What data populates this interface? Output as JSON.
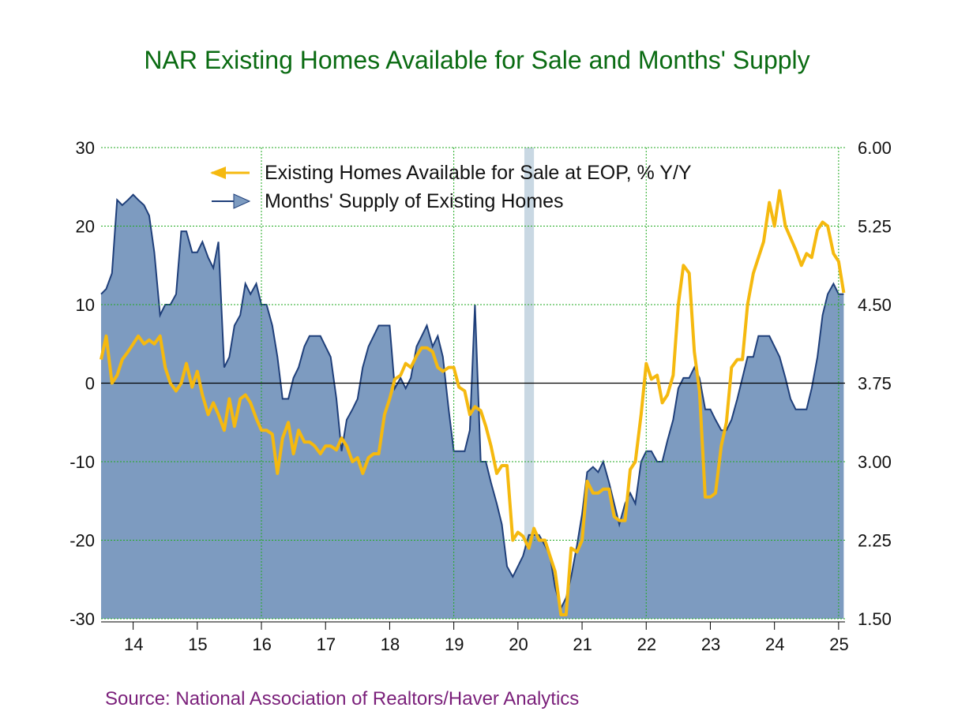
{
  "chart_data": {
    "type": "area",
    "title": "NAR Existing Homes Available for Sale and Months' Supply",
    "source": "Source:  National Association of Realtors/Haver Analytics",
    "colors": {
      "title": "#0a6b12",
      "source": "#7a1f7a",
      "area_fill": "#7d9bc0",
      "area_line": "#1f3f7a",
      "line": "#f5b90f",
      "recession": "#c9d8e3",
      "grid": "#22aa22"
    },
    "grid": true,
    "legend_position": "top-center",
    "x_axis": {
      "start": 2013.5,
      "end": 2025.1,
      "ticks": [
        "14",
        "15",
        "16",
        "17",
        "18",
        "19",
        "20",
        "21",
        "22",
        "23",
        "24",
        "25"
      ]
    },
    "y_left": {
      "range": [
        -30,
        30
      ],
      "ticks": [
        "30",
        "20",
        "10",
        "0",
        "-10",
        "-20",
        "-30"
      ]
    },
    "y_right": {
      "range": [
        1.5,
        6.0
      ],
      "ticks": [
        "6.00",
        "5.25",
        "4.50",
        "3.75",
        "3.00",
        "2.25",
        "1.50"
      ]
    },
    "recession": {
      "start": 2020.1,
      "end": 2020.25
    },
    "series": [
      {
        "name": "Existing Homes Available for Sale at EOP, % Y/Y",
        "axis": "left",
        "style": "line",
        "points": [
          [
            2013.5,
            3
          ],
          [
            2013.58,
            6
          ],
          [
            2013.67,
            0
          ],
          [
            2013.75,
            1
          ],
          [
            2013.83,
            3
          ],
          [
            2013.92,
            4
          ],
          [
            2014.0,
            5
          ],
          [
            2014.08,
            6
          ],
          [
            2014.17,
            5
          ],
          [
            2014.25,
            5.5
          ],
          [
            2014.33,
            5
          ],
          [
            2014.42,
            6
          ],
          [
            2014.5,
            2
          ],
          [
            2014.58,
            0
          ],
          [
            2014.67,
            -1
          ],
          [
            2014.75,
            0
          ],
          [
            2014.83,
            2.5
          ],
          [
            2014.92,
            -0.5
          ],
          [
            2015.0,
            1.5
          ],
          [
            2015.08,
            -1.5
          ],
          [
            2015.17,
            -4
          ],
          [
            2015.25,
            -2.5
          ],
          [
            2015.33,
            -4
          ],
          [
            2015.42,
            -6
          ],
          [
            2015.5,
            -2
          ],
          [
            2015.58,
            -5.5
          ],
          [
            2015.67,
            -2
          ],
          [
            2015.75,
            -1.5
          ],
          [
            2015.83,
            -2.5
          ],
          [
            2015.92,
            -4.5
          ],
          [
            2016.0,
            -6
          ],
          [
            2016.08,
            -6
          ],
          [
            2016.17,
            -6.5
          ],
          [
            2016.25,
            -11.5
          ],
          [
            2016.33,
            -7
          ],
          [
            2016.42,
            -5
          ],
          [
            2016.5,
            -9
          ],
          [
            2016.58,
            -6
          ],
          [
            2016.67,
            -7.5
          ],
          [
            2016.75,
            -7.5
          ],
          [
            2016.83,
            -8
          ],
          [
            2016.92,
            -9
          ],
          [
            2017.0,
            -8
          ],
          [
            2017.08,
            -8
          ],
          [
            2017.17,
            -8.5
          ],
          [
            2017.25,
            -7
          ],
          [
            2017.33,
            -8
          ],
          [
            2017.42,
            -10
          ],
          [
            2017.5,
            -9.5
          ],
          [
            2017.58,
            -11.5
          ],
          [
            2017.67,
            -9.5
          ],
          [
            2017.75,
            -9
          ],
          [
            2017.83,
            -9
          ],
          [
            2017.92,
            -4
          ],
          [
            2018.0,
            -2
          ],
          [
            2018.08,
            0.5
          ],
          [
            2018.17,
            1
          ],
          [
            2018.25,
            2.5
          ],
          [
            2018.33,
            2
          ],
          [
            2018.42,
            3.5
          ],
          [
            2018.5,
            4.5
          ],
          [
            2018.58,
            4.5
          ],
          [
            2018.67,
            4
          ],
          [
            2018.75,
            2
          ],
          [
            2018.83,
            1.5
          ],
          [
            2018.92,
            2
          ],
          [
            2019.0,
            2
          ],
          [
            2019.08,
            -0.5
          ],
          [
            2019.17,
            -1
          ],
          [
            2019.25,
            -4
          ],
          [
            2019.33,
            -3
          ],
          [
            2019.42,
            -3.5
          ],
          [
            2019.5,
            -5.5
          ],
          [
            2019.58,
            -8
          ],
          [
            2019.67,
            -11.5
          ],
          [
            2019.75,
            -10.5
          ],
          [
            2019.83,
            -10.5
          ],
          [
            2019.92,
            -20
          ],
          [
            2020.0,
            -19
          ],
          [
            2020.08,
            -19.5
          ],
          [
            2020.17,
            -21
          ],
          [
            2020.25,
            -18.5
          ],
          [
            2020.33,
            -20
          ],
          [
            2020.42,
            -20
          ],
          [
            2020.5,
            -22
          ],
          [
            2020.58,
            -24
          ],
          [
            2020.67,
            -29.5
          ],
          [
            2020.75,
            -29.5
          ],
          [
            2020.83,
            -21
          ],
          [
            2020.92,
            -21.5
          ],
          [
            2021.0,
            -20
          ],
          [
            2021.08,
            -12.5
          ],
          [
            2021.17,
            -14
          ],
          [
            2021.25,
            -14
          ],
          [
            2021.33,
            -13.5
          ],
          [
            2021.42,
            -13.5
          ],
          [
            2021.5,
            -17
          ],
          [
            2021.58,
            -17.5
          ],
          [
            2021.67,
            -17.5
          ],
          [
            2021.75,
            -11
          ],
          [
            2021.83,
            -10
          ],
          [
            2021.92,
            -4
          ],
          [
            2022.0,
            2.5
          ],
          [
            2022.08,
            0.5
          ],
          [
            2022.17,
            1
          ],
          [
            2022.25,
            -2.5
          ],
          [
            2022.33,
            -1.5
          ],
          [
            2022.42,
            1
          ],
          [
            2022.5,
            10
          ],
          [
            2022.58,
            15
          ],
          [
            2022.67,
            14
          ],
          [
            2022.75,
            4
          ],
          [
            2022.83,
            -1
          ],
          [
            2022.92,
            -14.5
          ],
          [
            2023.0,
            -14.5
          ],
          [
            2023.08,
            -14
          ],
          [
            2023.17,
            -8
          ],
          [
            2023.25,
            -5
          ],
          [
            2023.33,
            2
          ],
          [
            2023.42,
            3
          ],
          [
            2023.5,
            3
          ],
          [
            2023.58,
            10
          ],
          [
            2023.67,
            14
          ],
          [
            2023.75,
            16
          ],
          [
            2023.83,
            18
          ],
          [
            2023.92,
            23
          ],
          [
            2024.0,
            20
          ],
          [
            2024.08,
            24.5
          ],
          [
            2024.17,
            20
          ],
          [
            2024.25,
            18.5
          ],
          [
            2024.33,
            17
          ],
          [
            2024.42,
            15
          ],
          [
            2024.5,
            16.5
          ],
          [
            2024.58,
            16
          ],
          [
            2024.67,
            19.5
          ],
          [
            2024.75,
            20.5
          ],
          [
            2024.83,
            20
          ],
          [
            2024.92,
            16.5
          ],
          [
            2025.0,
            15.5
          ],
          [
            2025.08,
            11.5
          ]
        ]
      },
      {
        "name": "Months' Supply of Existing Homes",
        "axis": "right",
        "style": "area",
        "points": [
          [
            2013.5,
            4.6
          ],
          [
            2013.58,
            4.65
          ],
          [
            2013.67,
            4.8
          ],
          [
            2013.75,
            5.5
          ],
          [
            2013.83,
            5.45
          ],
          [
            2013.92,
            5.5
          ],
          [
            2014.0,
            5.55
          ],
          [
            2014.08,
            5.5
          ],
          [
            2014.17,
            5.45
          ],
          [
            2014.25,
            5.35
          ],
          [
            2014.33,
            5.0
          ],
          [
            2014.42,
            4.4
          ],
          [
            2014.5,
            4.5
          ],
          [
            2014.58,
            4.5
          ],
          [
            2014.67,
            4.6
          ],
          [
            2014.75,
            5.2
          ],
          [
            2014.83,
            5.2
          ],
          [
            2014.92,
            5.0
          ],
          [
            2015.0,
            5.0
          ],
          [
            2015.08,
            5.1
          ],
          [
            2015.17,
            4.95
          ],
          [
            2015.25,
            4.85
          ],
          [
            2015.33,
            5.1
          ],
          [
            2015.42,
            3.9
          ],
          [
            2015.5,
            4.0
          ],
          [
            2015.58,
            4.3
          ],
          [
            2015.67,
            4.4
          ],
          [
            2015.75,
            4.7
          ],
          [
            2015.83,
            4.6
          ],
          [
            2015.92,
            4.7
          ],
          [
            2016.0,
            4.5
          ],
          [
            2016.08,
            4.5
          ],
          [
            2016.17,
            4.3
          ],
          [
            2016.25,
            4.0
          ],
          [
            2016.33,
            3.6
          ],
          [
            2016.42,
            3.6
          ],
          [
            2016.5,
            3.8
          ],
          [
            2016.58,
            3.9
          ],
          [
            2016.67,
            4.1
          ],
          [
            2016.75,
            4.2
          ],
          [
            2016.83,
            4.2
          ],
          [
            2016.92,
            4.2
          ],
          [
            2017.0,
            4.1
          ],
          [
            2017.08,
            4.0
          ],
          [
            2017.17,
            3.6
          ],
          [
            2017.25,
            3.1
          ],
          [
            2017.33,
            3.4
          ],
          [
            2017.42,
            3.5
          ],
          [
            2017.5,
            3.6
          ],
          [
            2017.58,
            3.9
          ],
          [
            2017.67,
            4.1
          ],
          [
            2017.75,
            4.2
          ],
          [
            2017.83,
            4.3
          ],
          [
            2017.92,
            4.3
          ],
          [
            2018.0,
            4.3
          ],
          [
            2018.08,
            3.7
          ],
          [
            2018.17,
            3.8
          ],
          [
            2018.25,
            3.7
          ],
          [
            2018.33,
            3.8
          ],
          [
            2018.42,
            4.1
          ],
          [
            2018.5,
            4.2
          ],
          [
            2018.58,
            4.3
          ],
          [
            2018.67,
            4.1
          ],
          [
            2018.75,
            4.2
          ],
          [
            2018.83,
            4.0
          ],
          [
            2018.92,
            3.5
          ],
          [
            2019.0,
            3.1
          ],
          [
            2019.08,
            3.1
          ],
          [
            2019.17,
            3.1
          ],
          [
            2019.25,
            3.3
          ],
          [
            2019.33,
            4.5
          ],
          [
            2019.42,
            3.0
          ],
          [
            2019.5,
            3.0
          ],
          [
            2019.58,
            2.8
          ],
          [
            2019.67,
            2.6
          ],
          [
            2019.75,
            2.4
          ],
          [
            2019.83,
            2.0
          ],
          [
            2019.92,
            1.9
          ],
          [
            2020.0,
            2.0
          ],
          [
            2020.08,
            2.1
          ],
          [
            2020.17,
            2.3
          ],
          [
            2020.25,
            2.3
          ],
          [
            2020.33,
            2.3
          ],
          [
            2020.42,
            2.2
          ],
          [
            2020.5,
            2.1
          ],
          [
            2020.58,
            1.8
          ],
          [
            2020.67,
            1.6
          ],
          [
            2020.75,
            1.7
          ],
          [
            2020.83,
            1.9
          ],
          [
            2020.92,
            2.2
          ],
          [
            2021.0,
            2.5
          ],
          [
            2021.08,
            2.9
          ],
          [
            2021.17,
            2.95
          ],
          [
            2021.25,
            2.9
          ],
          [
            2021.33,
            3.0
          ],
          [
            2021.42,
            2.8
          ],
          [
            2021.5,
            2.6
          ],
          [
            2021.58,
            2.4
          ],
          [
            2021.67,
            2.6
          ],
          [
            2021.75,
            2.7
          ],
          [
            2021.83,
            2.6
          ],
          [
            2021.92,
            3.0
          ],
          [
            2022.0,
            3.1
          ],
          [
            2022.08,
            3.1
          ],
          [
            2022.17,
            3.0
          ],
          [
            2022.25,
            3.0
          ],
          [
            2022.33,
            3.2
          ],
          [
            2022.42,
            3.4
          ],
          [
            2022.5,
            3.7
          ],
          [
            2022.58,
            3.8
          ],
          [
            2022.67,
            3.8
          ],
          [
            2022.75,
            3.9
          ],
          [
            2022.83,
            3.8
          ],
          [
            2022.92,
            3.5
          ],
          [
            2023.0,
            3.5
          ],
          [
            2023.08,
            3.4
          ],
          [
            2023.17,
            3.3
          ],
          [
            2023.25,
            3.3
          ],
          [
            2023.33,
            3.4
          ],
          [
            2023.42,
            3.6
          ],
          [
            2023.5,
            3.8
          ],
          [
            2023.58,
            4.0
          ],
          [
            2023.67,
            4.0
          ],
          [
            2023.75,
            4.2
          ],
          [
            2023.83,
            4.2
          ],
          [
            2023.92,
            4.2
          ],
          [
            2024.0,
            4.1
          ],
          [
            2024.08,
            4.0
          ],
          [
            2024.17,
            3.8
          ],
          [
            2024.25,
            3.6
          ],
          [
            2024.33,
            3.5
          ],
          [
            2024.42,
            3.5
          ],
          [
            2024.5,
            3.5
          ],
          [
            2024.58,
            3.7
          ],
          [
            2024.67,
            4.0
          ],
          [
            2024.75,
            4.4
          ],
          [
            2024.83,
            4.6
          ],
          [
            2024.92,
            4.7
          ],
          [
            2025.0,
            4.6
          ],
          [
            2025.08,
            4.6
          ]
        ]
      }
    ]
  }
}
